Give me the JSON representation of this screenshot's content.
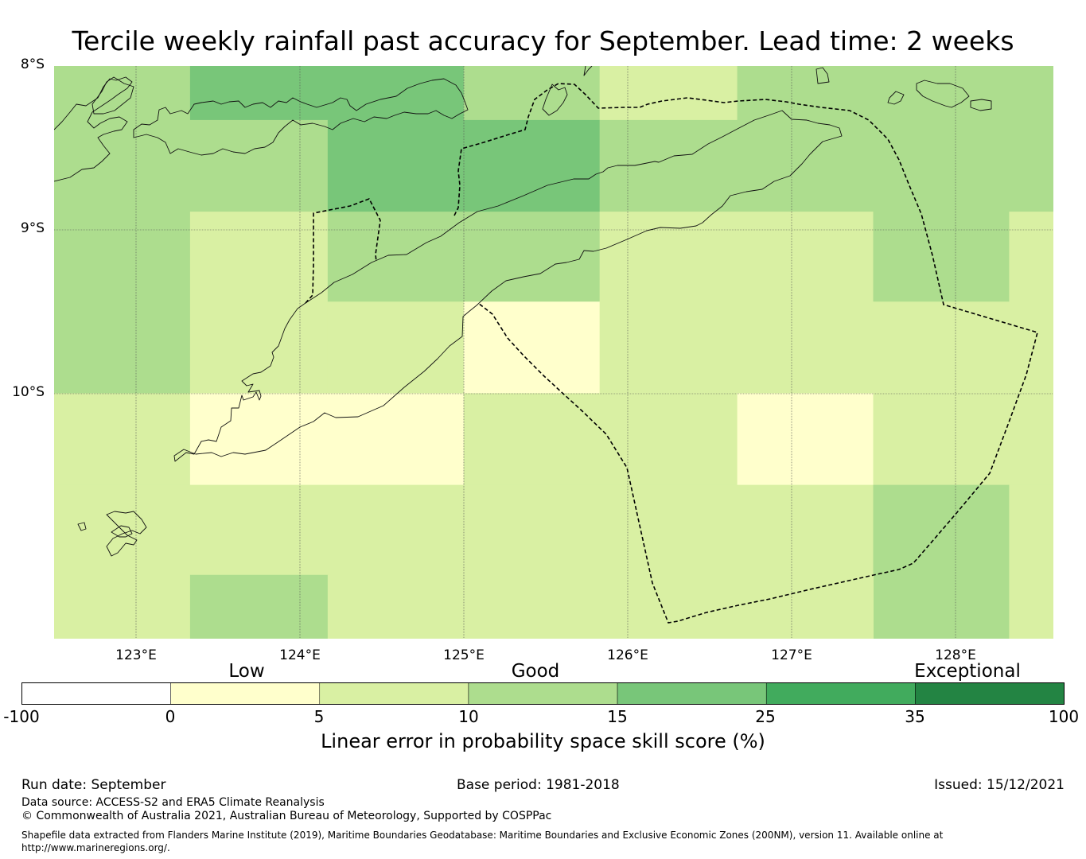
{
  "title": "Tercile weekly rainfall past accuracy for September. Lead time: 2 weeks",
  "map": {
    "lat_labels": [
      "8°S",
      "9°S",
      "10°S"
    ],
    "lon_labels": [
      "123°E",
      "124°E",
      "125°E",
      "126°E",
      "127°E",
      "128°E"
    ],
    "lon_range": [
      122.5,
      128.6
    ],
    "lat_range": [
      -8.0,
      -11.5
    ],
    "grid_cells": [
      {
        "lon0": 122.5,
        "lon1": 123.33,
        "lat0": -8.0,
        "lat1": -8.33,
        "cat": "10-15"
      },
      {
        "lon0": 123.33,
        "lon1": 125.0,
        "lat0": -8.0,
        "lat1": -8.33,
        "cat": "15-25"
      },
      {
        "lon0": 125.0,
        "lon1": 125.83,
        "lat0": -8.0,
        "lat1": -8.33,
        "cat": "10-15"
      },
      {
        "lon0": 125.83,
        "lon1": 126.67,
        "lat0": -8.0,
        "lat1": -8.33,
        "cat": "5-10"
      },
      {
        "lon0": 126.67,
        "lon1": 128.6,
        "lat0": -8.0,
        "lat1": -8.33,
        "cat": "10-15"
      },
      {
        "lon0": 122.5,
        "lon1": 124.17,
        "lat0": -8.33,
        "lat1": -8.89,
        "cat": "10-15"
      },
      {
        "lon0": 124.17,
        "lon1": 125.83,
        "lat0": -8.33,
        "lat1": -8.89,
        "cat": "15-25"
      },
      {
        "lon0": 125.83,
        "lon1": 128.6,
        "lat0": -8.33,
        "lat1": -8.89,
        "cat": "10-15"
      },
      {
        "lon0": 122.5,
        "lon1": 123.33,
        "lat0": -8.89,
        "lat1": -10.0,
        "cat": "10-15"
      },
      {
        "lon0": 123.33,
        "lon1": 124.17,
        "lat0": -8.89,
        "lat1": -10.0,
        "cat": "5-10"
      },
      {
        "lon0": 124.17,
        "lon1": 125.83,
        "lat0": -8.89,
        "lat1": -9.44,
        "cat": "10-15"
      },
      {
        "lon0": 124.17,
        "lon1": 125.0,
        "lat0": -9.44,
        "lat1": -10.0,
        "cat": "5-10"
      },
      {
        "lon0": 125.0,
        "lon1": 125.83,
        "lat0": -9.44,
        "lat1": -10.0,
        "cat": "0-5"
      },
      {
        "lon0": 125.83,
        "lon1": 127.5,
        "lat0": -8.89,
        "lat1": -10.0,
        "cat": "5-10"
      },
      {
        "lon0": 127.5,
        "lon1": 128.33,
        "lat0": -8.89,
        "lat1": -9.44,
        "cat": "10-15"
      },
      {
        "lon0": 127.5,
        "lon1": 128.33,
        "lat0": -9.44,
        "lat1": -10.0,
        "cat": "5-10"
      },
      {
        "lon0": 128.33,
        "lon1": 128.6,
        "lat0": -8.89,
        "lat1": -10.0,
        "cat": "5-10"
      },
      {
        "lon0": 122.5,
        "lon1": 123.33,
        "lat0": -10.0,
        "lat1": -10.56,
        "cat": "5-10"
      },
      {
        "lon0": 123.33,
        "lon1": 125.0,
        "lat0": -10.0,
        "lat1": -10.56,
        "cat": "0-5"
      },
      {
        "lon0": 125.0,
        "lon1": 126.67,
        "lat0": -10.0,
        "lat1": -10.56,
        "cat": "5-10"
      },
      {
        "lon0": 126.67,
        "lon1": 127.5,
        "lat0": -10.0,
        "lat1": -10.56,
        "cat": "0-5"
      },
      {
        "lon0": 127.5,
        "lon1": 128.6,
        "lat0": -10.0,
        "lat1": -10.56,
        "cat": "5-10"
      },
      {
        "lon0": 122.5,
        "lon1": 127.5,
        "lat0": -10.56,
        "lat1": -11.11,
        "cat": "5-10"
      },
      {
        "lon0": 127.5,
        "lon1": 128.33,
        "lat0": -10.56,
        "lat1": -11.5,
        "cat": "10-15"
      },
      {
        "lon0": 128.33,
        "lon1": 128.6,
        "lat0": -10.56,
        "lat1": -11.5,
        "cat": "5-10"
      },
      {
        "lon0": 122.5,
        "lon1": 123.33,
        "lat0": -11.11,
        "lat1": -11.5,
        "cat": "5-10"
      },
      {
        "lon0": 123.33,
        "lon1": 124.17,
        "lat0": -11.11,
        "lat1": -11.5,
        "cat": "10-15"
      },
      {
        "lon0": 124.17,
        "lon1": 127.5,
        "lat0": -11.11,
        "lat1": -11.5,
        "cat": "5-10"
      }
    ]
  },
  "colorbar": {
    "categories": [
      "Low",
      "Good",
      "Exceptional"
    ],
    "ticks": [
      "-100",
      "0",
      "5",
      "10",
      "15",
      "25",
      "35",
      "100"
    ],
    "colors": [
      "#ffffff",
      "#ffffcc",
      "#d9f0a3",
      "#addd8e",
      "#78c679",
      "#41ab5d",
      "#238443"
    ],
    "bin_keys": [
      "-100-0",
      "0-5",
      "5-10",
      "10-15",
      "15-25",
      "25-35",
      "35-100"
    ],
    "label": "Linear error in probability space skill score (%)"
  },
  "footer": {
    "run_date": "Run date: September",
    "base_period": "Base period: 1981-2018",
    "issued": "Issued: 15/12/2021",
    "data_source": "Data source: ACCESS-S2 and ERA5 Climate Reanalysis",
    "copyright": "© Commonwealth of Australia 2021, Australian Bureau of Meteorology, Supported by COSPPac",
    "shapefile_line1": "Shapefile data extracted from Flanders Marine Institute (2019), Maritime Boundaries Geodatabase: Maritime Boundaries and Exclusive Economic Zones (200NM), version 11. Available online at",
    "shapefile_line2": "http://www.marineregions.org/."
  }
}
